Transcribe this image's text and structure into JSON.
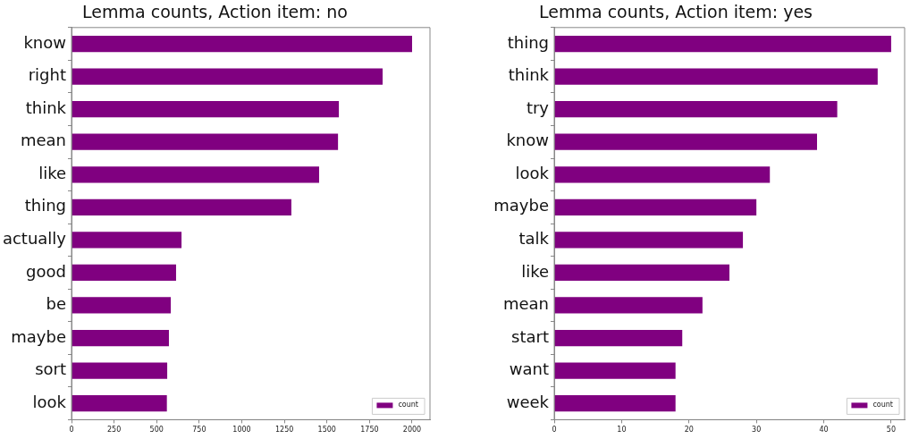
{
  "chart_data": [
    {
      "type": "bar",
      "orientation": "horizontal",
      "title": "Lemma counts, Action item: no",
      "categories": [
        "know",
        "right",
        "think",
        "mean",
        "like",
        "thing",
        "actually",
        "good",
        "be",
        "maybe",
        "sort",
        "look"
      ],
      "series": [
        {
          "name": "count",
          "color": "#800080",
          "values": [
            2000,
            1827,
            1570,
            1565,
            1454,
            1291,
            646,
            614,
            583,
            572,
            562,
            560
          ]
        }
      ],
      "xlim": [
        0,
        2105
      ],
      "xticks": [
        0,
        250,
        500,
        750,
        1000,
        1250,
        1500,
        1750,
        2000
      ],
      "legend": "bottom right",
      "grid": false
    },
    {
      "type": "bar",
      "orientation": "horizontal",
      "title": "Lemma counts, Action item: yes",
      "categories": [
        "thing",
        "think",
        "try",
        "know",
        "look",
        "maybe",
        "talk",
        "like",
        "mean",
        "start",
        "want",
        "week"
      ],
      "series": [
        {
          "name": "count",
          "color": "#800080",
          "values": [
            50,
            48,
            42,
            39,
            32,
            30,
            28,
            26,
            22,
            19,
            18,
            18
          ]
        }
      ],
      "xlim": [
        0,
        52
      ],
      "xticks": [
        0,
        10,
        20,
        30,
        40,
        50
      ],
      "legend": "bottom right",
      "grid": false
    }
  ]
}
